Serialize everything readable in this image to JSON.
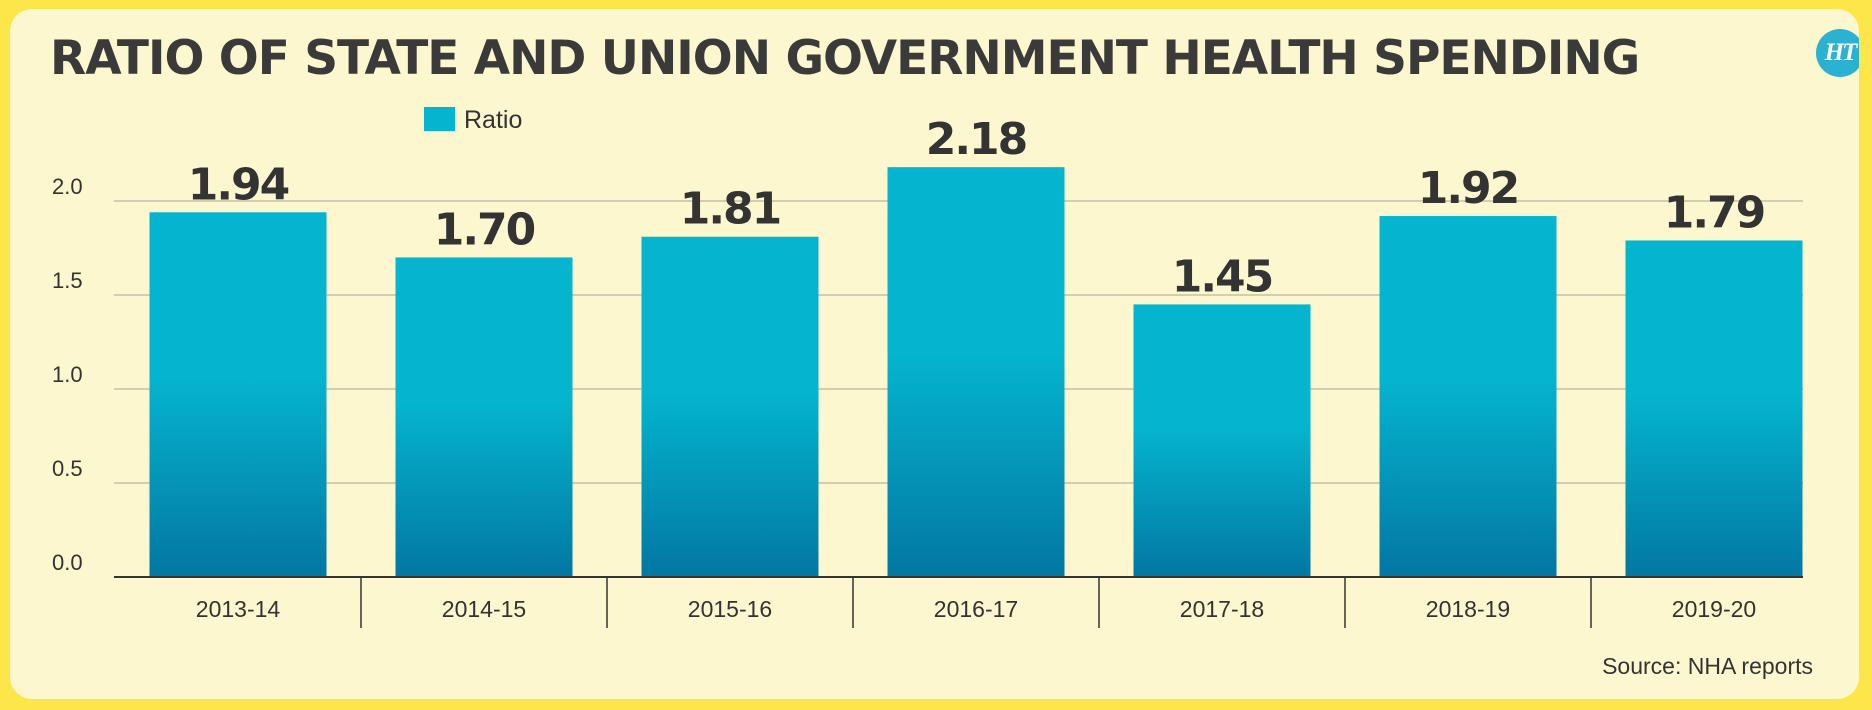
{
  "title": "RATIO OF STATE AND UNION GOVERNMENT HEALTH SPENDING",
  "logo_text": "HT",
  "source": "Source: NHA reports",
  "colors": {
    "bar_top": "#05b5cf",
    "bar_bottom": "#0277a3",
    "background": "#fdf7cf",
    "border": "#fde64a"
  },
  "chart_data": {
    "type": "bar",
    "title": "RATIO OF STATE AND UNION GOVERNMENT HEALTH SPENDING",
    "xlabel": "",
    "ylabel": "",
    "categories": [
      "2013-14",
      "2014-15",
      "2015-16",
      "2016-17",
      "2017-18",
      "2018-19",
      "2019-20"
    ],
    "series": [
      {
        "name": "Ratio",
        "values": [
          1.94,
          1.7,
          1.81,
          2.18,
          1.45,
          1.92,
          1.79
        ]
      }
    ],
    "data_labels": [
      "1.94",
      "1.70",
      "1.81",
      "2.18",
      "1.45",
      "1.92",
      "1.79"
    ],
    "yticks": [
      "0.0",
      "0.5",
      "1.0",
      "1.5",
      "2.0"
    ],
    "ylim": [
      0,
      2.0
    ],
    "grid": true,
    "legend": "top-left"
  }
}
